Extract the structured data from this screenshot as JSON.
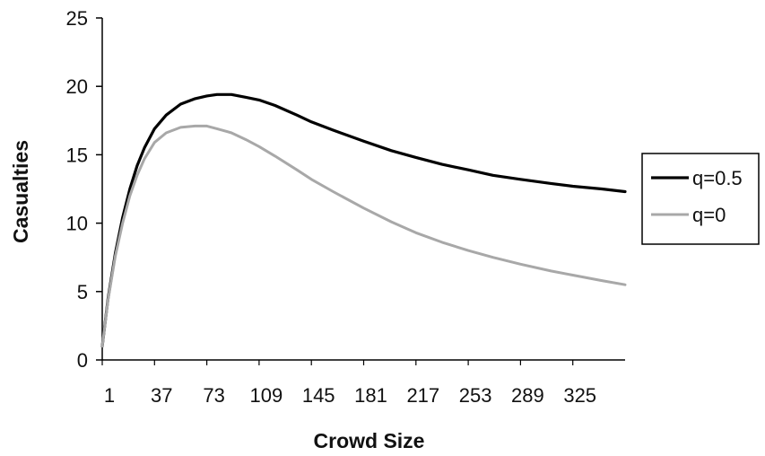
{
  "chart_data": {
    "type": "line",
    "xlabel": "Crowd Size",
    "ylabel": "Casualties",
    "x_tick_labels": [
      "1",
      "37",
      "73",
      "109",
      "145",
      "181",
      "217",
      "253",
      "289",
      "325"
    ],
    "x_tick_values": [
      1,
      37,
      73,
      109,
      145,
      181,
      217,
      253,
      289,
      325
    ],
    "xlim": [
      1,
      361
    ],
    "ylim": [
      0,
      25
    ],
    "y_ticks": [
      0,
      5,
      10,
      15,
      20,
      25
    ],
    "grid": false,
    "legend_position": "right",
    "series": [
      {
        "name": "q=0.5",
        "color": "#000000",
        "x": [
          1,
          5,
          10,
          15,
          20,
          25,
          30,
          37,
          45,
          55,
          65,
          73,
          80,
          90,
          100,
          109,
          120,
          135,
          145,
          160,
          181,
          200,
          217,
          235,
          253,
          270,
          289,
          310,
          325,
          345,
          361
        ],
        "y": [
          1.0,
          4.5,
          7.8,
          10.4,
          12.5,
          14.2,
          15.5,
          16.9,
          17.9,
          18.7,
          19.1,
          19.3,
          19.4,
          19.4,
          19.2,
          19.0,
          18.6,
          17.9,
          17.4,
          16.8,
          16.0,
          15.3,
          14.8,
          14.3,
          13.9,
          13.5,
          13.2,
          12.9,
          12.7,
          12.5,
          12.3
        ]
      },
      {
        "name": "q=0",
        "color": "#a8a8a8",
        "x": [
          1,
          5,
          10,
          15,
          20,
          25,
          30,
          37,
          45,
          55,
          65,
          73,
          80,
          90,
          100,
          109,
          120,
          135,
          145,
          160,
          181,
          200,
          217,
          235,
          253,
          270,
          289,
          310,
          325,
          345,
          361
        ],
        "y": [
          1.0,
          4.4,
          7.6,
          10.0,
          12.0,
          13.5,
          14.7,
          15.9,
          16.6,
          17.0,
          17.1,
          17.1,
          16.9,
          16.6,
          16.1,
          15.6,
          14.9,
          13.9,
          13.2,
          12.3,
          11.1,
          10.1,
          9.3,
          8.6,
          8.0,
          7.5,
          7.0,
          6.5,
          6.2,
          5.8,
          5.5
        ]
      }
    ]
  }
}
